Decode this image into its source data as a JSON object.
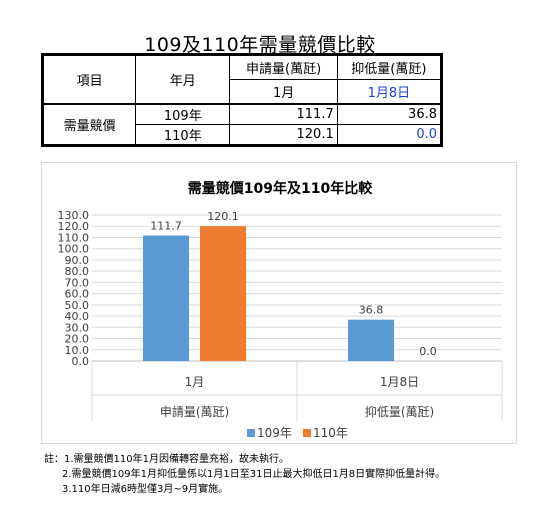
{
  "title": "109及110年需量競價比較",
  "table": {
    "h_item": "項目",
    "h_year": "年月",
    "h_apply": "申請量(萬瓩)",
    "h_suppress": "抑低量(萬瓩)",
    "sub_month1": "1月",
    "sub_date": "1月8日",
    "row_label": "需量競價",
    "rows": [
      {
        "year": "109年",
        "apply": "111.7",
        "suppress": "36.8"
      },
      {
        "year": "110年",
        "apply": "120.1",
        "suppress": "0.0"
      }
    ]
  },
  "chart_data": {
    "type": "bar",
    "title": "需量競價109年及110年比較",
    "categories": [
      "1月",
      "1月8日"
    ],
    "group_labels": [
      "申請量(萬瓩)",
      "抑低量(萬瓩)"
    ],
    "series": [
      {
        "name": "109年",
        "values": [
          111.7,
          36.8
        ],
        "color": "#5b9bd5"
      },
      {
        "name": "110年",
        "values": [
          120.1,
          0.0
        ],
        "color": "#ed7d31"
      }
    ],
    "ylim": [
      0,
      130
    ],
    "ytick_step": 10,
    "ytick_labels": [
      "0.0",
      "10.0",
      "20.0",
      "30.0",
      "40.0",
      "50.0",
      "60.0",
      "70.0",
      "80.0",
      "90.0",
      "100.0",
      "110.0",
      "120.0",
      "130.0"
    ],
    "value_labels": [
      "111.7",
      "120.1",
      "36.8",
      "0.0"
    ],
    "legend_position": "bottom",
    "grid": true
  },
  "notes": [
    "註：1.需量競價110年1月因備轉容量充裕，故未執行。",
    "2.需量競價109年1月抑低量係以1月1日至31日止最大抑低日1月8日實際抑低量計得。",
    "3.110年日減6時型僅3月~9月實施。"
  ]
}
